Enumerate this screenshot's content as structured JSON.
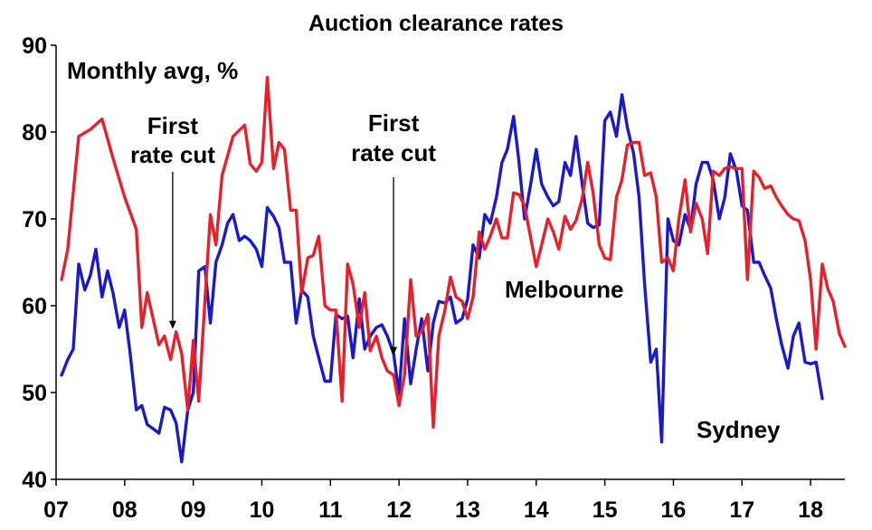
{
  "chart_data": {
    "type": "line",
    "title": "Auction clearance rates",
    "subtitle": "Monthly avg, %",
    "xlabel": "",
    "ylabel": "",
    "xlim": [
      2007.0,
      2018.5
    ],
    "ylim": [
      40,
      90
    ],
    "yticks": [
      40,
      50,
      60,
      70,
      80,
      90
    ],
    "xticks": [
      {
        "label": "07",
        "value": 2007.0
      },
      {
        "label": "08",
        "value": 2008.0
      },
      {
        "label": "09",
        "value": 2009.0
      },
      {
        "label": "10",
        "value": 2010.0
      },
      {
        "label": "11",
        "value": 2011.0
      },
      {
        "label": "12",
        "value": 2012.0
      },
      {
        "label": "13",
        "value": 2013.0
      },
      {
        "label": "14",
        "value": 2014.0
      },
      {
        "label": "15",
        "value": 2015.0
      },
      {
        "label": "16",
        "value": 2016.0
      },
      {
        "label": "17",
        "value": 2017.0
      },
      {
        "label": "18",
        "value": 2018.0
      }
    ],
    "grid": false,
    "annotations": [
      {
        "line1": "First",
        "line2": "rate cut",
        "x": 2008.7,
        "y": 57
      },
      {
        "line1": "First",
        "line2": "rate cut",
        "x": 2011.92,
        "y": 54
      }
    ],
    "series": [
      {
        "name": "Melbourne",
        "color": "#e8202a",
        "points": [
          [
            2007.08,
            63.0
          ],
          [
            2007.17,
            66.5
          ],
          [
            2007.33,
            79.5
          ],
          [
            2007.5,
            80.3
          ],
          [
            2007.67,
            81.5
          ],
          [
            2007.83,
            77.0
          ],
          [
            2008.0,
            72.5
          ],
          [
            2008.17,
            68.8
          ],
          [
            2008.25,
            57.5
          ],
          [
            2008.33,
            61.5
          ],
          [
            2008.5,
            55.5
          ],
          [
            2008.58,
            56.5
          ],
          [
            2008.67,
            53.8
          ],
          [
            2008.75,
            57.0
          ],
          [
            2008.83,
            54.5
          ],
          [
            2008.92,
            48.0
          ],
          [
            2009.0,
            56.0
          ],
          [
            2009.08,
            49.0
          ],
          [
            2009.17,
            60.5
          ],
          [
            2009.25,
            70.5
          ],
          [
            2009.33,
            67.0
          ],
          [
            2009.42,
            75.0
          ],
          [
            2009.58,
            79.5
          ],
          [
            2009.75,
            80.8
          ],
          [
            2009.83,
            76.3
          ],
          [
            2009.92,
            75.5
          ],
          [
            2010.0,
            76.5
          ],
          [
            2010.08,
            86.3
          ],
          [
            2010.17,
            75.8
          ],
          [
            2010.25,
            78.8
          ],
          [
            2010.33,
            78.0
          ],
          [
            2010.42,
            71.0
          ],
          [
            2010.5,
            71.0
          ],
          [
            2010.58,
            61.5
          ],
          [
            2010.67,
            65.5
          ],
          [
            2010.75,
            65.8
          ],
          [
            2010.83,
            68.0
          ],
          [
            2010.92,
            60.0
          ],
          [
            2011.0,
            59.5
          ],
          [
            2011.08,
            59.5
          ],
          [
            2011.17,
            49.0
          ],
          [
            2011.25,
            64.8
          ],
          [
            2011.33,
            62.5
          ],
          [
            2011.42,
            57.5
          ],
          [
            2011.5,
            61.5
          ],
          [
            2011.58,
            54.8
          ],
          [
            2011.67,
            56.5
          ],
          [
            2011.75,
            54.0
          ],
          [
            2011.83,
            52.5
          ],
          [
            2011.92,
            52.0
          ],
          [
            2012.0,
            48.5
          ],
          [
            2012.08,
            52.0
          ],
          [
            2012.17,
            63.0
          ],
          [
            2012.25,
            56.5
          ],
          [
            2012.33,
            57.0
          ],
          [
            2012.42,
            59.0
          ],
          [
            2012.5,
            46.0
          ],
          [
            2012.58,
            56.5
          ],
          [
            2012.67,
            59.5
          ],
          [
            2012.75,
            63.3
          ],
          [
            2012.83,
            61.0
          ],
          [
            2012.92,
            60.5
          ],
          [
            2013.0,
            58.5
          ],
          [
            2013.08,
            61.0
          ],
          [
            2013.17,
            68.5
          ],
          [
            2013.25,
            66.5
          ],
          [
            2013.33,
            68.0
          ],
          [
            2013.42,
            70.0
          ],
          [
            2013.5,
            67.8
          ],
          [
            2013.58,
            67.8
          ],
          [
            2013.67,
            73.0
          ],
          [
            2013.75,
            72.8
          ],
          [
            2013.83,
            71.5
          ],
          [
            2013.92,
            67.8
          ],
          [
            2014.0,
            64.5
          ],
          [
            2014.08,
            67.0
          ],
          [
            2014.17,
            70.0
          ],
          [
            2014.25,
            68.5
          ],
          [
            2014.33,
            66.5
          ],
          [
            2014.42,
            70.3
          ],
          [
            2014.5,
            68.8
          ],
          [
            2014.58,
            69.8
          ],
          [
            2014.67,
            72.3
          ],
          [
            2014.75,
            76.5
          ],
          [
            2014.83,
            73.0
          ],
          [
            2014.92,
            67.0
          ],
          [
            2015.0,
            65.5
          ],
          [
            2015.08,
            65.3
          ],
          [
            2015.17,
            72.5
          ],
          [
            2015.25,
            74.5
          ],
          [
            2015.33,
            78.5
          ],
          [
            2015.42,
            78.8
          ],
          [
            2015.5,
            78.8
          ],
          [
            2015.58,
            75.0
          ],
          [
            2015.67,
            75.3
          ],
          [
            2015.75,
            72.5
          ],
          [
            2015.83,
            65.0
          ],
          [
            2015.92,
            65.5
          ],
          [
            2016.0,
            64.0
          ],
          [
            2016.08,
            70.0
          ],
          [
            2016.17,
            74.5
          ],
          [
            2016.25,
            68.5
          ],
          [
            2016.33,
            71.8
          ],
          [
            2016.42,
            70.0
          ],
          [
            2016.5,
            66.0
          ],
          [
            2016.58,
            75.5
          ],
          [
            2016.67,
            75.0
          ],
          [
            2016.75,
            75.8
          ],
          [
            2016.83,
            76.0
          ],
          [
            2016.92,
            75.8
          ],
          [
            2017.0,
            75.8
          ],
          [
            2017.08,
            63.0
          ],
          [
            2017.17,
            75.5
          ],
          [
            2017.25,
            74.8
          ],
          [
            2017.33,
            73.5
          ],
          [
            2017.42,
            73.8
          ],
          [
            2017.5,
            72.5
          ],
          [
            2017.58,
            71.5
          ],
          [
            2017.67,
            70.5
          ],
          [
            2017.75,
            70.0
          ],
          [
            2017.83,
            69.8
          ],
          [
            2017.92,
            67.5
          ],
          [
            2018.0,
            63.0
          ],
          [
            2018.08,
            55.0
          ],
          [
            2018.17,
            64.8
          ],
          [
            2018.25,
            62.0
          ],
          [
            2018.33,
            60.5
          ],
          [
            2018.42,
            56.8
          ],
          [
            2018.5,
            55.3
          ]
        ]
      },
      {
        "name": "Sydney",
        "color": "#1a1acc",
        "points": [
          [
            2007.08,
            52.0
          ],
          [
            2007.17,
            53.8
          ],
          [
            2007.25,
            55.0
          ],
          [
            2007.33,
            64.8
          ],
          [
            2007.42,
            61.8
          ],
          [
            2007.5,
            63.5
          ],
          [
            2007.58,
            66.5
          ],
          [
            2007.67,
            61.0
          ],
          [
            2007.75,
            64.0
          ],
          [
            2007.83,
            61.5
          ],
          [
            2007.92,
            57.5
          ],
          [
            2008.0,
            59.5
          ],
          [
            2008.08,
            54.5
          ],
          [
            2008.17,
            48.0
          ],
          [
            2008.25,
            48.5
          ],
          [
            2008.33,
            46.3
          ],
          [
            2008.42,
            45.8
          ],
          [
            2008.5,
            45.3
          ],
          [
            2008.58,
            48.3
          ],
          [
            2008.67,
            48.0
          ],
          [
            2008.75,
            46.5
          ],
          [
            2008.83,
            42.0
          ],
          [
            2008.92,
            48.0
          ],
          [
            2009.0,
            50.0
          ],
          [
            2009.08,
            64.0
          ],
          [
            2009.17,
            64.5
          ],
          [
            2009.25,
            58.0
          ],
          [
            2009.33,
            65.0
          ],
          [
            2009.42,
            67.0
          ],
          [
            2009.5,
            69.5
          ],
          [
            2009.58,
            70.5
          ],
          [
            2009.67,
            67.5
          ],
          [
            2009.75,
            68.0
          ],
          [
            2009.83,
            67.5
          ],
          [
            2009.92,
            66.5
          ],
          [
            2010.0,
            64.5
          ],
          [
            2010.08,
            71.3
          ],
          [
            2010.17,
            70.3
          ],
          [
            2010.25,
            69.0
          ],
          [
            2010.33,
            65.0
          ],
          [
            2010.42,
            65.0
          ],
          [
            2010.5,
            58.0
          ],
          [
            2010.58,
            61.8
          ],
          [
            2010.67,
            61.0
          ],
          [
            2010.75,
            56.5
          ],
          [
            2010.83,
            54.0
          ],
          [
            2010.92,
            51.3
          ],
          [
            2011.0,
            51.3
          ],
          [
            2011.08,
            59.0
          ],
          [
            2011.17,
            58.5
          ],
          [
            2011.25,
            58.8
          ],
          [
            2011.33,
            54.0
          ],
          [
            2011.42,
            60.8
          ],
          [
            2011.5,
            55.0
          ],
          [
            2011.58,
            56.5
          ],
          [
            2011.67,
            57.5
          ],
          [
            2011.75,
            57.8
          ],
          [
            2011.83,
            56.5
          ],
          [
            2011.92,
            54.5
          ],
          [
            2012.0,
            49.8
          ],
          [
            2012.08,
            58.5
          ],
          [
            2012.17,
            51.0
          ],
          [
            2012.25,
            55.0
          ],
          [
            2012.33,
            58.5
          ],
          [
            2012.42,
            52.5
          ],
          [
            2012.5,
            58.0
          ],
          [
            2012.58,
            60.5
          ],
          [
            2012.67,
            60.3
          ],
          [
            2012.75,
            61.0
          ],
          [
            2012.83,
            58.0
          ],
          [
            2012.92,
            58.5
          ],
          [
            2013.0,
            60.8
          ],
          [
            2013.08,
            67.0
          ],
          [
            2013.17,
            65.5
          ],
          [
            2013.25,
            70.5
          ],
          [
            2013.33,
            69.5
          ],
          [
            2013.42,
            72.5
          ],
          [
            2013.5,
            76.5
          ],
          [
            2013.58,
            78.0
          ],
          [
            2013.67,
            81.8
          ],
          [
            2013.75,
            76.5
          ],
          [
            2013.83,
            70.0
          ],
          [
            2013.92,
            74.0
          ],
          [
            2014.0,
            78.0
          ],
          [
            2014.08,
            74.0
          ],
          [
            2014.17,
            72.5
          ],
          [
            2014.25,
            71.5
          ],
          [
            2014.33,
            72.0
          ],
          [
            2014.42,
            76.5
          ],
          [
            2014.5,
            75.0
          ],
          [
            2014.58,
            79.5
          ],
          [
            2014.67,
            74.0
          ],
          [
            2014.75,
            69.5
          ],
          [
            2014.83,
            69.0
          ],
          [
            2014.92,
            69.3
          ],
          [
            2015.0,
            81.3
          ],
          [
            2015.08,
            82.3
          ],
          [
            2015.17,
            79.5
          ],
          [
            2015.25,
            84.3
          ],
          [
            2015.33,
            80.5
          ],
          [
            2015.42,
            77.5
          ],
          [
            2015.5,
            72.5
          ],
          [
            2015.58,
            62.5
          ],
          [
            2015.67,
            53.5
          ],
          [
            2015.75,
            55.0
          ],
          [
            2015.83,
            44.3
          ],
          [
            2015.92,
            70.0
          ],
          [
            2016.0,
            67.5
          ],
          [
            2016.08,
            67.0
          ],
          [
            2016.17,
            70.5
          ],
          [
            2016.25,
            68.8
          ],
          [
            2016.33,
            74.0
          ],
          [
            2016.42,
            76.5
          ],
          [
            2016.5,
            76.5
          ],
          [
            2016.58,
            74.5
          ],
          [
            2016.67,
            70.0
          ],
          [
            2016.75,
            72.5
          ],
          [
            2016.83,
            77.5
          ],
          [
            2016.92,
            75.5
          ],
          [
            2017.0,
            71.5
          ],
          [
            2017.08,
            71.0
          ],
          [
            2017.17,
            65.0
          ],
          [
            2017.25,
            65.0
          ],
          [
            2017.33,
            63.5
          ],
          [
            2017.42,
            62.0
          ],
          [
            2017.5,
            58.5
          ],
          [
            2017.58,
            55.5
          ],
          [
            2017.67,
            52.8
          ],
          [
            2017.75,
            56.5
          ],
          [
            2017.83,
            58.0
          ],
          [
            2017.92,
            53.5
          ],
          [
            2018.0,
            53.3
          ],
          [
            2018.08,
            53.5
          ],
          [
            2018.17,
            49.3
          ]
        ]
      }
    ]
  }
}
